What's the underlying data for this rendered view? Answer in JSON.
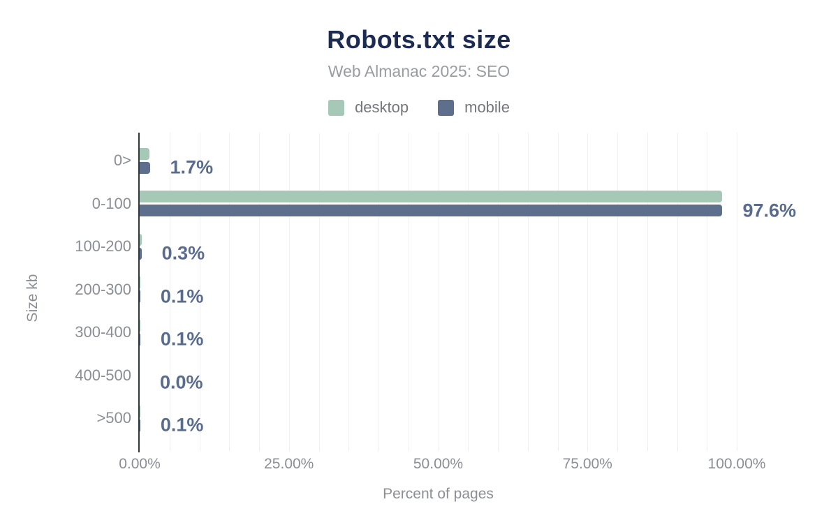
{
  "header": {
    "title": "Robots.txt size",
    "subtitle": "Web Almanac 2025: SEO"
  },
  "legend": {
    "items": [
      {
        "label": "desktop",
        "color": "#a6c9b7"
      },
      {
        "label": "mobile",
        "color": "#5d6f8c"
      }
    ]
  },
  "chart_data": {
    "type": "bar",
    "orientation": "horizontal",
    "title": "Robots.txt size",
    "subtitle": "Web Almanac 2025: SEO",
    "categories": [
      "0>",
      "0-100",
      "100-200",
      "200-300",
      "300-400",
      "400-500",
      ">500"
    ],
    "series": [
      {
        "name": "desktop",
        "color": "#a6c9b7",
        "values": [
          1.6,
          97.5,
          0.3,
          0.1,
          0.1,
          0.0,
          0.1
        ]
      },
      {
        "name": "mobile",
        "color": "#5d6f8c",
        "values": [
          1.7,
          97.6,
          0.3,
          0.1,
          0.1,
          0.0,
          0.1
        ]
      }
    ],
    "value_labels": [
      "1.7%",
      "97.6%",
      "0.3%",
      "0.1%",
      "0.1%",
      "0.0%",
      "0.1%"
    ],
    "xlabel": "Percent of pages",
    "ylabel": "Size kb",
    "x_ticks": [
      "0.00%",
      "25.00%",
      "50.00%",
      "75.00%",
      "100.00%"
    ],
    "x_tick_values": [
      0,
      25,
      50,
      75,
      100
    ],
    "xlim": [
      0,
      100
    ],
    "grid": {
      "visible": true,
      "minor_step_percent": 5
    },
    "legend_position": "top",
    "colors": {
      "title": "#1b2b52",
      "subtitle": "#999da2",
      "axis_text": "#8b8f94",
      "value_label": "#5a6c8e",
      "axis_line": "#32373c",
      "gridline": "#f1f1f1",
      "background": "#ffffff"
    }
  }
}
